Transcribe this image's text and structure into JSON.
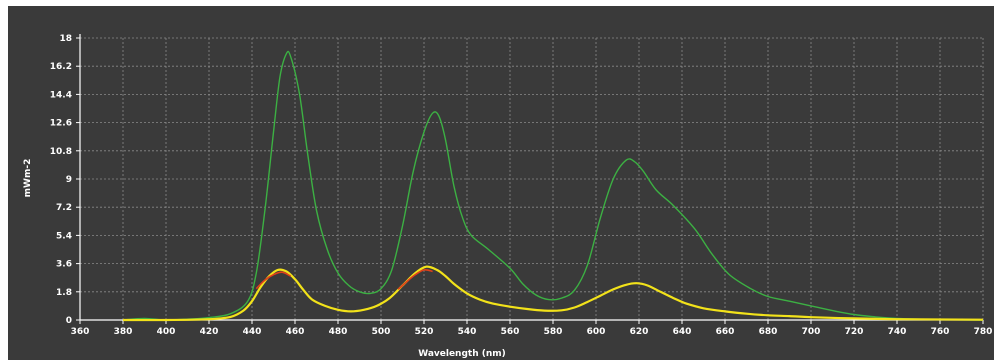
{
  "colors": {
    "background": "#3a3a3a",
    "grid": "#8a8a8a",
    "axis": "#ffffff",
    "series_green": "#3cb043",
    "series_yellow": "#f2e21a",
    "series_red": "#e0401a"
  },
  "chart_data": {
    "type": "line",
    "title": "",
    "xlabel": "Wavelength (nm)",
    "ylabel": "mWm-2",
    "xlim": [
      360,
      780
    ],
    "ylim": [
      0,
      18
    ],
    "grid": true,
    "legend": "none",
    "x_ticks": [
      "360",
      "380",
      "400",
      "420",
      "440",
      "460",
      "480",
      "500",
      "520",
      "540",
      "560",
      "580",
      "600",
      "620",
      "640",
      "660",
      "680",
      "700",
      "720",
      "740",
      "760",
      "780"
    ],
    "y_ticks": [
      "0",
      "1.8",
      "3.6",
      "5.4",
      "7.2",
      "9",
      "10.8",
      "12.6",
      "14.4",
      "16.2",
      "18"
    ],
    "series": [
      {
        "color": "green",
        "points": [
          [
            380,
            0
          ],
          [
            390,
            0.1
          ],
          [
            400,
            0
          ],
          [
            410,
            0.05
          ],
          [
            420,
            0.15
          ],
          [
            430,
            0.4
          ],
          [
            438,
            1.2
          ],
          [
            442,
            3
          ],
          [
            446,
            7
          ],
          [
            450,
            12
          ],
          [
            453,
            15.5
          ],
          [
            456,
            17
          ],
          [
            458,
            16.8
          ],
          [
            462,
            14.5
          ],
          [
            466,
            10.5
          ],
          [
            470,
            7
          ],
          [
            475,
            4.5
          ],
          [
            480,
            3
          ],
          [
            485,
            2.2
          ],
          [
            490,
            1.8
          ],
          [
            495,
            1.7
          ],
          [
            500,
            2
          ],
          [
            505,
            3.2
          ],
          [
            510,
            6
          ],
          [
            515,
            9.5
          ],
          [
            520,
            12
          ],
          [
            524,
            13.2
          ],
          [
            527,
            13
          ],
          [
            530,
            11.5
          ],
          [
            534,
            8.5
          ],
          [
            538,
            6.5
          ],
          [
            542,
            5.4
          ],
          [
            550,
            4.5
          ],
          [
            560,
            3.3
          ],
          [
            566,
            2.3
          ],
          [
            572,
            1.6
          ],
          [
            578,
            1.3
          ],
          [
            584,
            1.4
          ],
          [
            590,
            1.9
          ],
          [
            596,
            3.5
          ],
          [
            602,
            6.5
          ],
          [
            608,
            9
          ],
          [
            614,
            10.2
          ],
          [
            618,
            10.1
          ],
          [
            622,
            9.5
          ],
          [
            628,
            8.3
          ],
          [
            636,
            7.3
          ],
          [
            646,
            5.8
          ],
          [
            654,
            4.2
          ],
          [
            662,
            2.9
          ],
          [
            672,
            2
          ],
          [
            680,
            1.5
          ],
          [
            690,
            1.2
          ],
          [
            700,
            0.9
          ],
          [
            710,
            0.6
          ],
          [
            720,
            0.35
          ],
          [
            730,
            0.2
          ],
          [
            740,
            0.1
          ],
          [
            760,
            0.03
          ],
          [
            780,
            0
          ]
        ]
      },
      {
        "color": "yellow",
        "points": [
          [
            380,
            0
          ],
          [
            400,
            0
          ],
          [
            420,
            0.05
          ],
          [
            430,
            0.2
          ],
          [
            436,
            0.6
          ],
          [
            440,
            1.2
          ],
          [
            444,
            2.1
          ],
          [
            448,
            2.8
          ],
          [
            452,
            3.2
          ],
          [
            456,
            3.1
          ],
          [
            460,
            2.6
          ],
          [
            464,
            1.9
          ],
          [
            468,
            1.3
          ],
          [
            474,
            0.9
          ],
          [
            480,
            0.65
          ],
          [
            486,
            0.55
          ],
          [
            492,
            0.65
          ],
          [
            498,
            0.9
          ],
          [
            504,
            1.4
          ],
          [
            510,
            2.2
          ],
          [
            516,
            3
          ],
          [
            521,
            3.4
          ],
          [
            526,
            3.2
          ],
          [
            530,
            2.8
          ],
          [
            534,
            2.3
          ],
          [
            540,
            1.7
          ],
          [
            546,
            1.3
          ],
          [
            552,
            1.05
          ],
          [
            560,
            0.85
          ],
          [
            568,
            0.7
          ],
          [
            576,
            0.6
          ],
          [
            584,
            0.62
          ],
          [
            590,
            0.8
          ],
          [
            596,
            1.15
          ],
          [
            602,
            1.55
          ],
          [
            608,
            1.95
          ],
          [
            614,
            2.25
          ],
          [
            619,
            2.35
          ],
          [
            624,
            2.2
          ],
          [
            630,
            1.8
          ],
          [
            636,
            1.4
          ],
          [
            642,
            1.05
          ],
          [
            650,
            0.75
          ],
          [
            660,
            0.55
          ],
          [
            670,
            0.4
          ],
          [
            680,
            0.3
          ],
          [
            690,
            0.25
          ],
          [
            700,
            0.18
          ],
          [
            720,
            0.1
          ],
          [
            740,
            0.05
          ],
          [
            780,
            0.02
          ]
        ]
      },
      {
        "color": "red",
        "points": [
          [
            442,
            2.0
          ],
          [
            446,
            2.55
          ],
          [
            450,
            2.9
          ],
          [
            454,
            3.05
          ],
          [
            458,
            2.8
          ],
          [
            508,
            1.95
          ],
          [
            512,
            2.45
          ],
          [
            516,
            2.9
          ],
          [
            520,
            3.2
          ],
          [
            524,
            3.1
          ]
        ]
      }
    ]
  }
}
